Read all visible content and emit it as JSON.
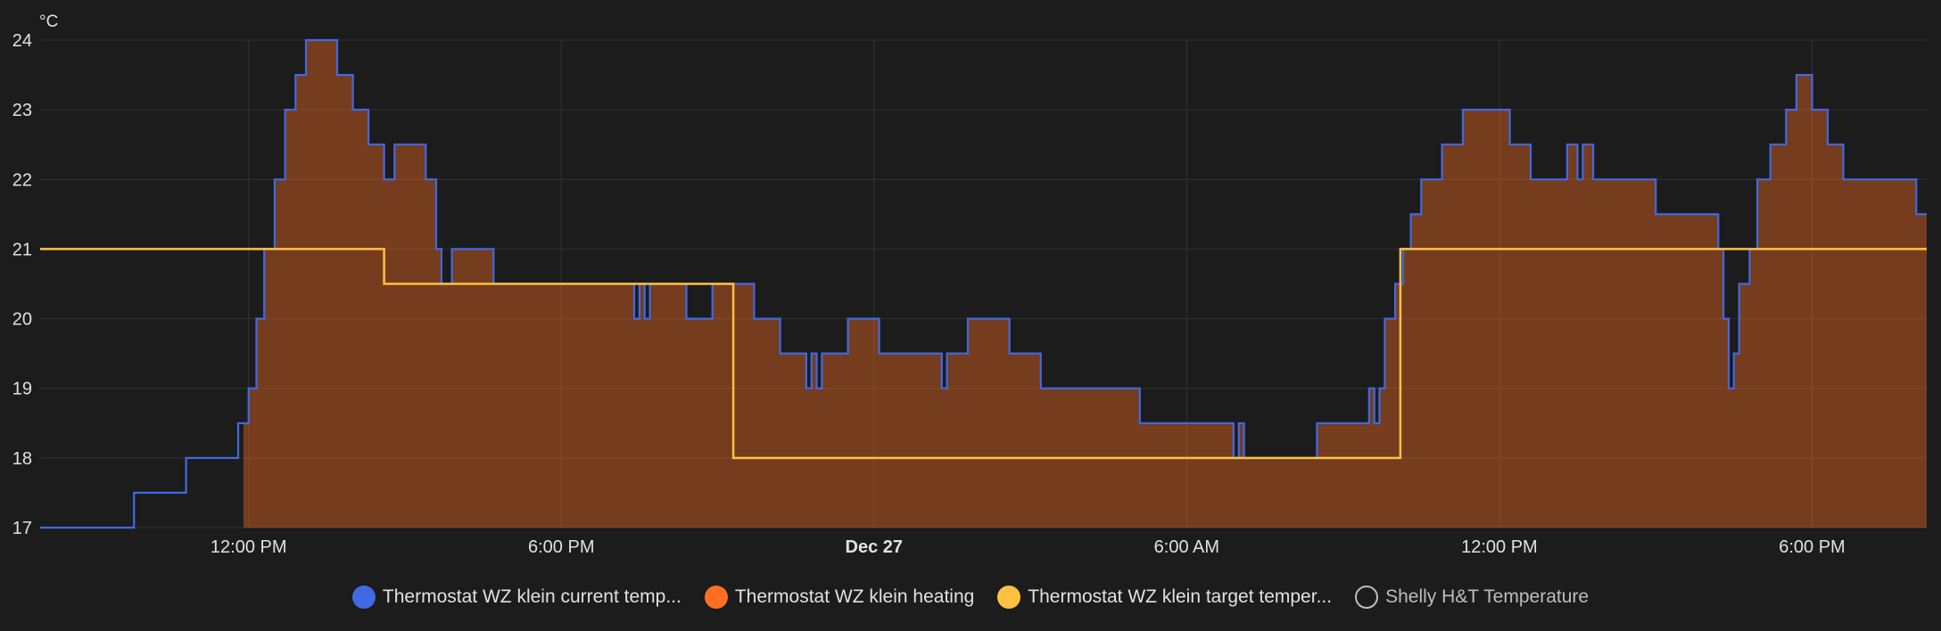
{
  "chart_data": {
    "type": "line",
    "unit": "°C",
    "x_start_hour": 8,
    "x_end_hour": 44.2,
    "ylim": [
      17,
      24
    ],
    "y_ticks": [
      17,
      18,
      19,
      20,
      21,
      22,
      23,
      24
    ],
    "x_ticks": [
      {
        "hour": 12,
        "label": "12:00 PM",
        "bold": false
      },
      {
        "hour": 18,
        "label": "6:00 PM",
        "bold": false
      },
      {
        "hour": 24,
        "label": "Dec 27",
        "bold": true
      },
      {
        "hour": 30,
        "label": "6:00 AM",
        "bold": false
      },
      {
        "hour": 36,
        "label": "12:00 PM",
        "bold": false
      },
      {
        "hour": 42,
        "label": "6:00 PM",
        "bold": false
      }
    ],
    "grid": true,
    "legend_position": "bottom-center",
    "series": [
      {
        "name": "Thermostat WZ klein current temp...",
        "color": "#4169e1",
        "style": "step-line",
        "points": [
          [
            8.0,
            17.0
          ],
          [
            9.8,
            17.5
          ],
          [
            10.8,
            18.0
          ],
          [
            11.8,
            18.5
          ],
          [
            12.0,
            19.0
          ],
          [
            12.15,
            20.0
          ],
          [
            12.3,
            21.0
          ],
          [
            12.5,
            22.0
          ],
          [
            12.7,
            23.0
          ],
          [
            12.9,
            23.5
          ],
          [
            13.1,
            24.0
          ],
          [
            13.7,
            23.5
          ],
          [
            14.0,
            23.0
          ],
          [
            14.3,
            22.5
          ],
          [
            14.6,
            22.0
          ],
          [
            14.8,
            22.5
          ],
          [
            15.4,
            22.0
          ],
          [
            15.6,
            21.0
          ],
          [
            15.7,
            20.5
          ],
          [
            15.9,
            21.0
          ],
          [
            16.7,
            20.5
          ],
          [
            19.4,
            20.0
          ],
          [
            19.5,
            20.5
          ],
          [
            19.6,
            20.0
          ],
          [
            19.7,
            20.5
          ],
          [
            19.8,
            20.5
          ],
          [
            20.4,
            20.0
          ],
          [
            20.9,
            20.5
          ],
          [
            21.0,
            20.5
          ],
          [
            21.3,
            20.5
          ],
          [
            21.7,
            20.0
          ],
          [
            22.2,
            19.5
          ],
          [
            22.7,
            19.0
          ],
          [
            22.8,
            19.5
          ],
          [
            22.9,
            19.0
          ],
          [
            23.0,
            19.5
          ],
          [
            23.5,
            20.0
          ],
          [
            24.1,
            19.5
          ],
          [
            25.3,
            19.0
          ],
          [
            25.4,
            19.5
          ],
          [
            25.8,
            20.0
          ],
          [
            26.6,
            19.5
          ],
          [
            27.2,
            19.0
          ],
          [
            29.1,
            18.5
          ],
          [
            30.9,
            18.0
          ],
          [
            31.0,
            18.5
          ],
          [
            31.1,
            18.0
          ],
          [
            32.5,
            18.5
          ],
          [
            33.5,
            19.0
          ],
          [
            33.6,
            18.5
          ],
          [
            33.7,
            19.0
          ],
          [
            33.8,
            20.0
          ],
          [
            34.0,
            20.5
          ],
          [
            34.15,
            21.0
          ],
          [
            34.3,
            21.5
          ],
          [
            34.5,
            22.0
          ],
          [
            34.9,
            22.5
          ],
          [
            35.3,
            23.0
          ],
          [
            36.2,
            22.5
          ],
          [
            36.6,
            22.0
          ],
          [
            37.3,
            22.5
          ],
          [
            37.5,
            22.0
          ],
          [
            37.6,
            22.5
          ],
          [
            37.8,
            22.0
          ],
          [
            39.0,
            21.5
          ],
          [
            40.2,
            21.0
          ],
          [
            40.3,
            20.0
          ],
          [
            40.4,
            19.0
          ],
          [
            40.5,
            19.5
          ],
          [
            40.6,
            20.5
          ],
          [
            40.8,
            21.0
          ],
          [
            40.95,
            22.0
          ],
          [
            41.2,
            22.5
          ],
          [
            41.5,
            23.0
          ],
          [
            41.7,
            23.5
          ],
          [
            42.0,
            23.0
          ],
          [
            42.3,
            22.5
          ],
          [
            42.6,
            22.0
          ],
          [
            44.0,
            21.5
          ],
          [
            44.2,
            21.5
          ]
        ]
      },
      {
        "name": "Thermostat WZ klein heating",
        "color": "#ff6f22",
        "style": "area",
        "ranges": [
          [
            11.9,
            32.5
          ],
          [
            32.5,
            44.2
          ]
        ]
      },
      {
        "name": "Thermostat WZ klein target temper...",
        "color": "#ffc142",
        "style": "step-line",
        "points": [
          [
            8.0,
            21.0
          ],
          [
            14.6,
            20.5
          ],
          [
            21.3,
            18.0
          ],
          [
            34.1,
            21.0
          ],
          [
            44.2,
            21.0
          ]
        ]
      },
      {
        "name": "Shelly H&T Temperature",
        "color": "#e1e1e1",
        "style": "hidden",
        "points": []
      }
    ]
  }
}
